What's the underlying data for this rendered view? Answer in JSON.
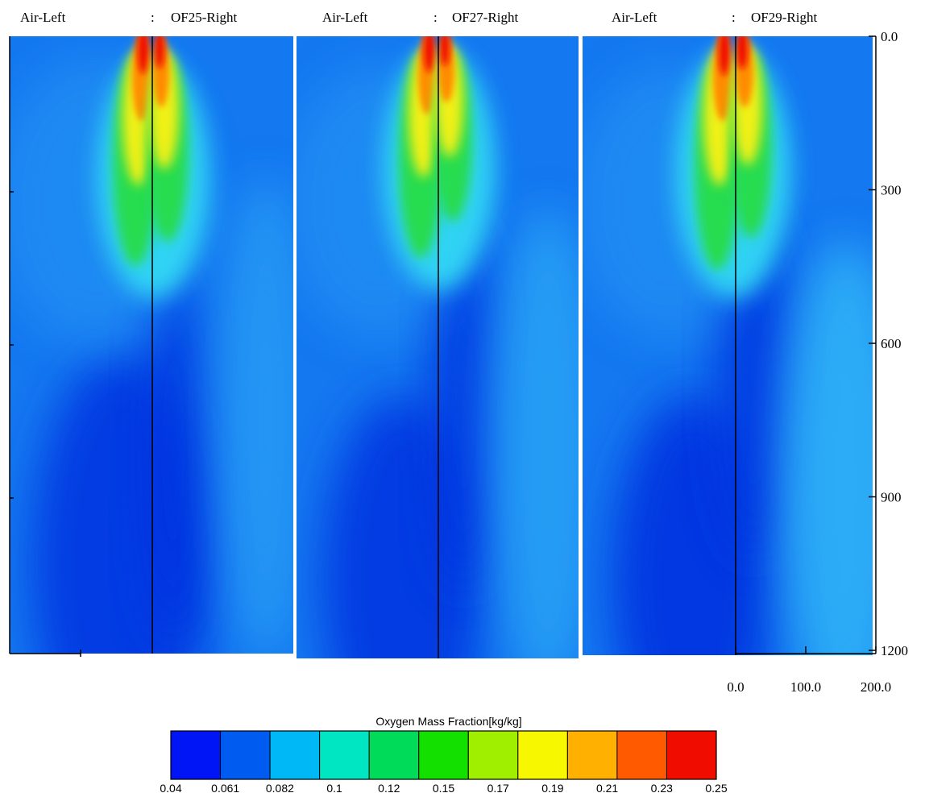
{
  "chart_data": {
    "type": "heatmap",
    "panels": [
      {
        "left_label": "Air-Left",
        "separator": ":",
        "right_label": "OF25-Right"
      },
      {
        "left_label": "Air-Left",
        "separator": ":",
        "right_label": "OF27-Right"
      },
      {
        "left_label": "Air-Left",
        "separator": ":",
        "right_label": "OF29-Right"
      }
    ],
    "y_axis": {
      "ticks": [
        "0.0",
        "300",
        "600",
        "900",
        "1200"
      ],
      "range": [
        0,
        1200
      ]
    },
    "x_axis": {
      "ticks": [
        "0.0",
        "100.0",
        "200.0"
      ],
      "range": [
        0,
        200
      ]
    },
    "colorbar": {
      "title": "Oxygen Mass Fraction[kg/kg]",
      "ticks": [
        "0.04",
        "0.061",
        "0.082",
        "0.1",
        "0.12",
        "0.15",
        "0.17",
        "0.19",
        "0.21",
        "0.23",
        "0.25"
      ],
      "colors": [
        "#0015f5",
        "#005cf0",
        "#00b8f5",
        "#00e5c2",
        "#00dc5a",
        "#14e000",
        "#a0ee00",
        "#f7f700",
        "#ffb000",
        "#ff5a00",
        "#f00d00"
      ]
    },
    "colors": {
      "background": "#1478f0",
      "low": "#0530e0",
      "mid": "#22aaf8",
      "cyan": "#3ce8f0",
      "green": "#28dc50",
      "yellow": "#f0f018",
      "orange": "#ff8c00",
      "red": "#f01000"
    }
  }
}
